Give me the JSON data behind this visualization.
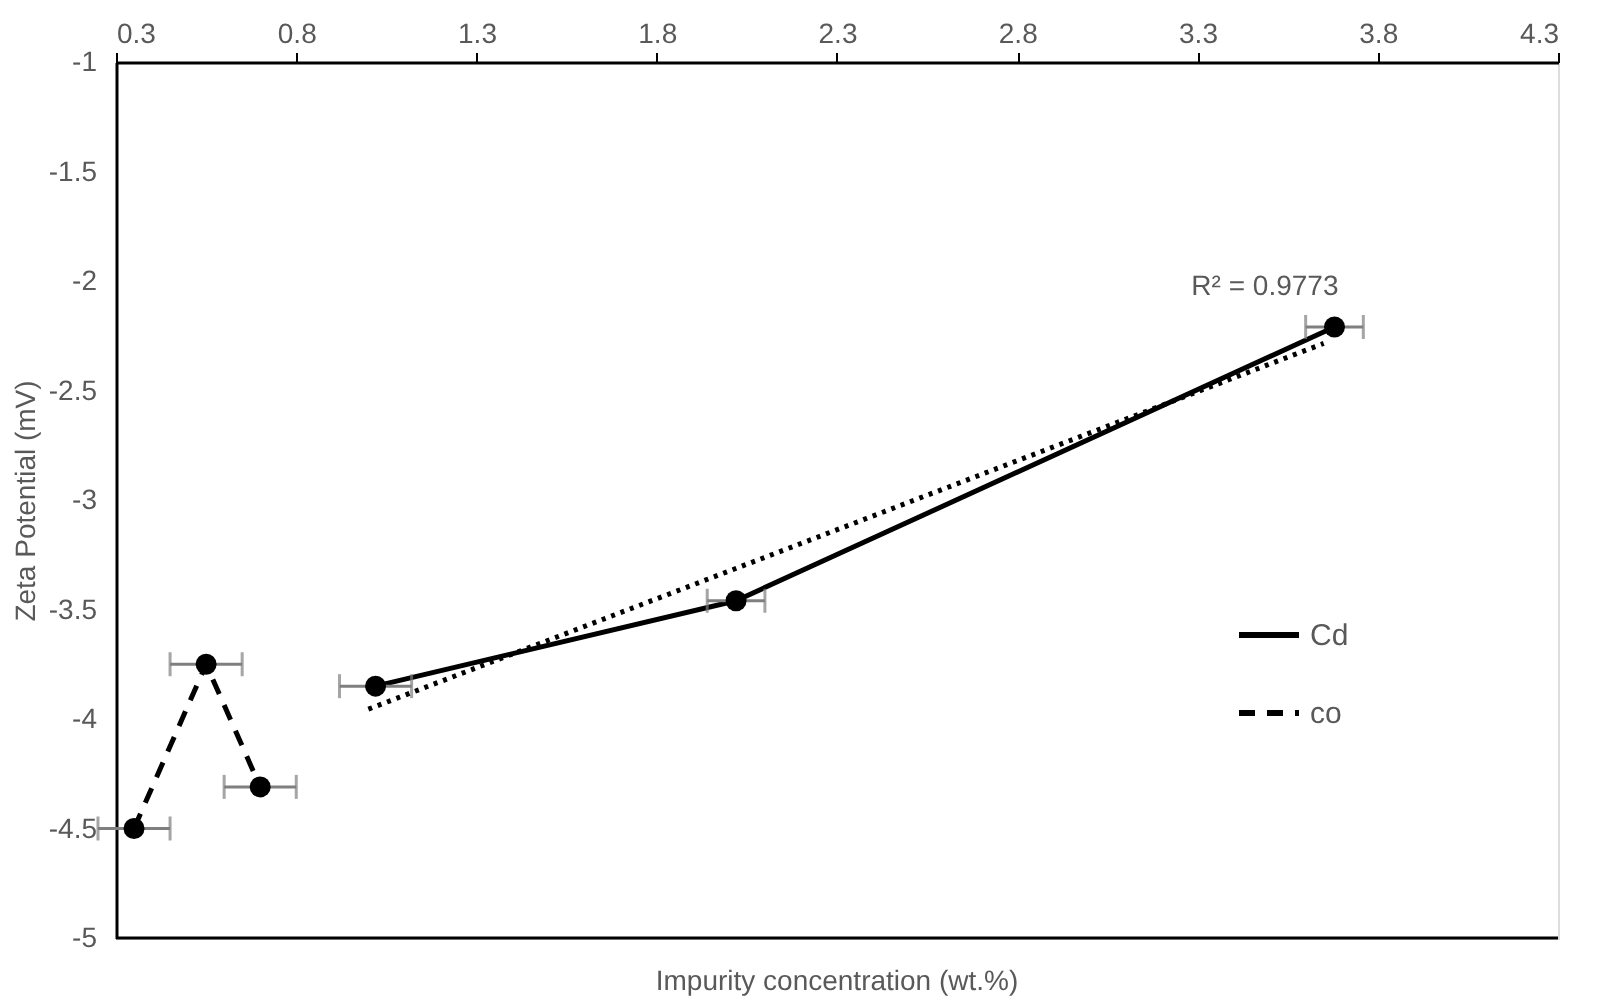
{
  "chart_data": {
    "type": "line",
    "xlabel": "Impurity concentration (wt.%)",
    "ylabel": "Zeta Potential (mV)",
    "xlim": [
      0.3,
      4.3
    ],
    "xticks": [
      0.3,
      0.8,
      1.3,
      1.8,
      2.3,
      2.8,
      3.3,
      3.8,
      4.3
    ],
    "ylim": [
      -5,
      -1
    ],
    "yticks": [
      -1,
      -1.5,
      -2,
      -2.5,
      -3,
      -3.5,
      -4,
      -4.5,
      -5
    ],
    "grid": false,
    "legend": "right",
    "marker": "circle",
    "series": [
      {
        "name": "Cd",
        "color": "#000000",
        "line_style": "solid",
        "x": [
          1.02,
          2.02,
          3.68
        ],
        "values": [
          -3.85,
          -3.46,
          -2.21
        ],
        "xerrors": [
          0.1,
          0.08,
          0.08
        ]
      },
      {
        "name": "co",
        "color": "#000000",
        "line_style": "dashed",
        "x": [
          0.35,
          0.55,
          0.7
        ],
        "values": [
          -4.5,
          -3.75,
          -4.31
        ],
        "xerrors": [
          0.1,
          0.1,
          0.1
        ]
      },
      {
        "type": "line",
        "color": "#000000",
        "line_style": "dotted",
        "marker": "none",
        "x": [
          1.0,
          3.65
        ],
        "values": [
          -3.955,
          -2.285
        ]
      }
    ],
    "annotations": [
      {
        "text": "R² = 0.9773",
        "x": 3.68,
        "y": -2.21
      }
    ]
  }
}
